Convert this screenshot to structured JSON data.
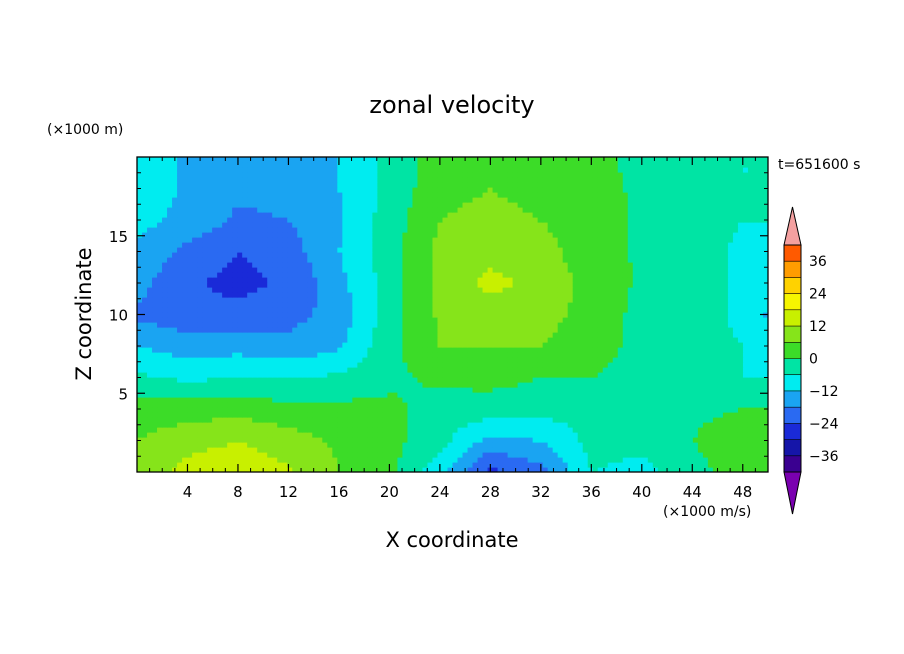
{
  "chart_data": {
    "type": "heatmap",
    "title": "zonal velocity",
    "xlabel": "X coordinate",
    "ylabel": "Z coordinate",
    "x_unit": "(×1000 m/s)",
    "y_unit": "(×1000 m)",
    "time_label": "t=651600 s",
    "xlim": [
      0,
      50
    ],
    "ylim": [
      0,
      20
    ],
    "x_ticks": [
      "4",
      "8",
      "12",
      "16",
      "20",
      "24",
      "28",
      "32",
      "36",
      "40",
      "44",
      "48"
    ],
    "y_ticks": [
      "5",
      "10",
      "15"
    ],
    "colorbar": {
      "ticks": [
        "36",
        "24",
        "12",
        "0",
        "−12",
        "−24",
        "−36"
      ],
      "levels": [
        -42,
        -36,
        -30,
        -24,
        -18,
        -12,
        -6,
        0,
        6,
        12,
        18,
        24,
        30,
        36,
        42
      ],
      "colors": [
        "#7a00b0",
        "#3a0090",
        "#1515a8",
        "#1a2ad8",
        "#2a6af2",
        "#1aa4f2",
        "#00ecf0",
        "#00e4a4",
        "#3cdc28",
        "#86e41a",
        "#c8f000",
        "#f6f500",
        "#ffd200",
        "#ff9c00",
        "#ff5a00",
        "#ee2010",
        "#f4a0a0"
      ]
    },
    "x": [
      0,
      4,
      8,
      12,
      16,
      20,
      24,
      28,
      32,
      36,
      40,
      44,
      48,
      50
    ],
    "y": [
      0,
      2,
      4,
      6,
      8,
      10,
      12,
      14,
      16,
      18,
      20
    ],
    "z": [
      [
        8,
        14,
        16,
        13,
        6,
        2,
        -10,
        -26,
        -20,
        -6,
        -8,
        -3,
        4,
        2
      ],
      [
        6,
        10,
        12,
        9,
        5,
        2,
        -4,
        -14,
        -12,
        -4,
        -4,
        0,
        6,
        5
      ],
      [
        3,
        3,
        4,
        2,
        2,
        1,
        -2,
        -3,
        -4,
        -4,
        -2,
        -2,
        0,
        0
      ],
      [
        -5,
        -7,
        -6,
        -6,
        -5,
        -1,
        1,
        2,
        0,
        0,
        -3,
        -4,
        -6,
        -6
      ],
      [
        -12,
        -15,
        -14,
        -16,
        -13,
        -2,
        6,
        6,
        6,
        3,
        -2,
        -4,
        -6,
        -8
      ],
      [
        -19,
        -22,
        -22,
        -20,
        -16,
        -3,
        7,
        8,
        8,
        4,
        -2,
        -4,
        -7,
        -13
      ],
      [
        -16,
        -23,
        -26,
        -23,
        -14,
        -3,
        8,
        14,
        10,
        4,
        -1,
        -4,
        -7,
        -10
      ],
      [
        -13,
        -20,
        -24,
        -21,
        -12,
        -3,
        8,
        10,
        8,
        3,
        -1,
        -4,
        -7,
        -7
      ],
      [
        -10,
        -14,
        -19,
        -18,
        -13,
        -3,
        6,
        8,
        6,
        3,
        -1,
        -4,
        -6,
        -6
      ],
      [
        -8,
        -13,
        -17,
        -16,
        -12,
        -4,
        4,
        6,
        4,
        2,
        -1,
        -4,
        -6,
        -6
      ],
      [
        -8,
        -13,
        -17,
        -16,
        -12,
        -4,
        3,
        5,
        3,
        2,
        -2,
        -4,
        -6,
        -6
      ]
    ]
  }
}
